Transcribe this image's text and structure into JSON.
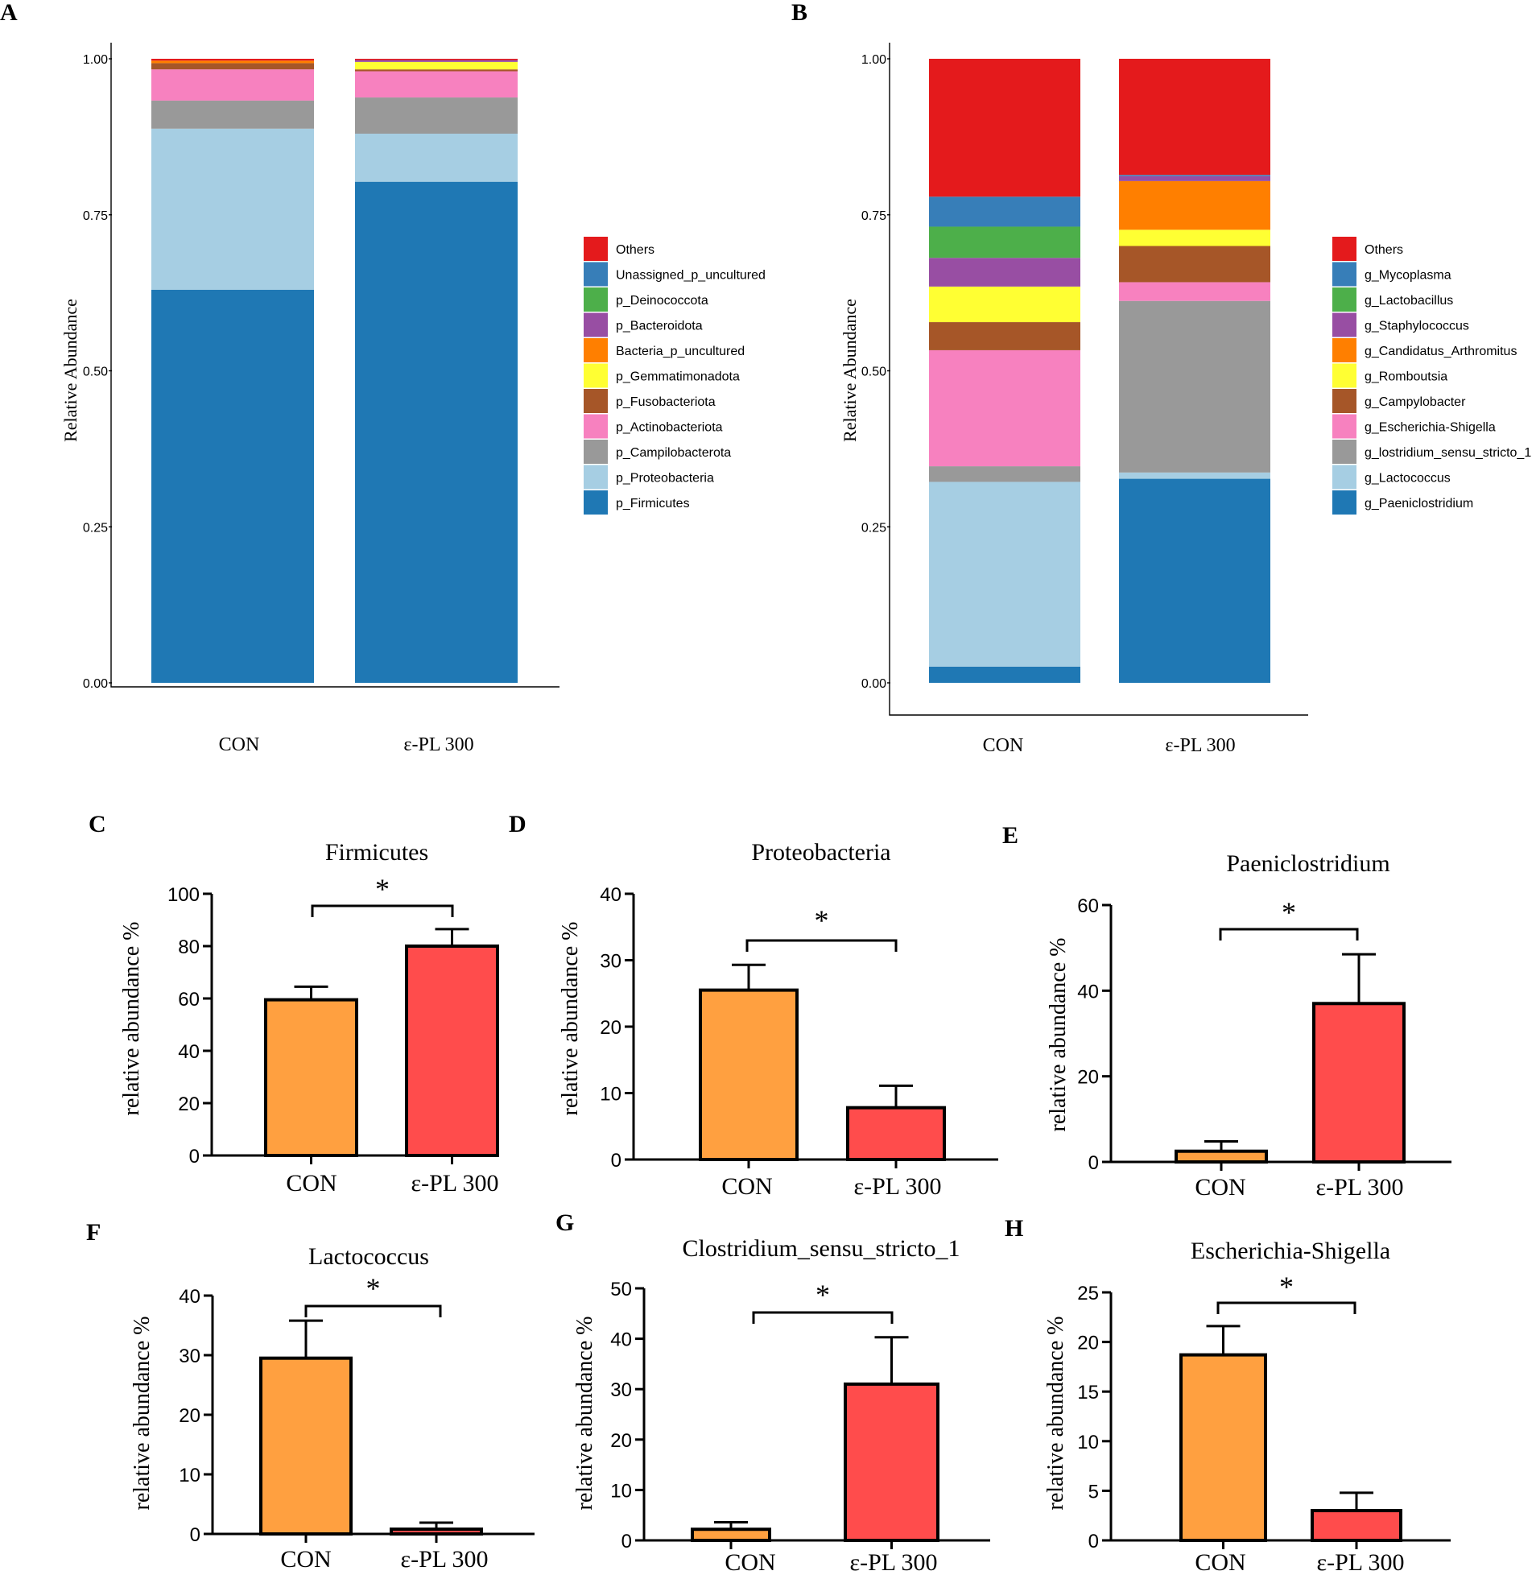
{
  "colors": {
    "red": "#e41a1c",
    "blue_dark": "#1f78b4",
    "blue_mid": "#377eb8",
    "green": "#4daf4a",
    "purple": "#984ea3",
    "orange": "#ff7f00",
    "yellow": "#ffff33",
    "brown": "#a65628",
    "pink": "#f781bf",
    "grey": "#999999",
    "light_blue": "#a6cee3",
    "bar_con": "#ffa040",
    "bar_pl": "#ff4c4c"
  },
  "chart_data": [
    {
      "id": "A",
      "type": "bar",
      "stacked": true,
      "panel": "A",
      "ylabel": "Relative Abundance",
      "ylim": [
        0,
        1
      ],
      "yticks": [
        "0.00",
        "0.25",
        "0.50",
        "0.75",
        "1.00"
      ],
      "categories": [
        "CON",
        "ε-PL 300"
      ],
      "series": [
        {
          "name": "p_Firmicutes",
          "color": "#1f78b4",
          "values": [
            0.63,
            0.803
          ]
        },
        {
          "name": "p_Proteobacteria",
          "color": "#a6cee3",
          "values": [
            0.258,
            0.077
          ]
        },
        {
          "name": "p_Campilobacterota",
          "color": "#999999",
          "values": [
            0.045,
            0.058
          ]
        },
        {
          "name": "p_Actinobacteriota",
          "color": "#f781bf",
          "values": [
            0.05,
            0.042
          ]
        },
        {
          "name": "p_Fusobacteriota",
          "color": "#a65628",
          "values": [
            0.01,
            0.003
          ]
        },
        {
          "name": "p_Gemmatimonadota",
          "color": "#ffff33",
          "values": [
            0.0,
            0.012
          ]
        },
        {
          "name": "Bacteria_p_uncultured",
          "color": "#ff7f00",
          "values": [
            0.004,
            0.0
          ]
        },
        {
          "name": "p_Bacteroidota",
          "color": "#984ea3",
          "values": [
            0.0,
            0.003
          ]
        },
        {
          "name": "p_Deinococcota",
          "color": "#4daf4a",
          "values": [
            0.0,
            0.0
          ]
        },
        {
          "name": "Unassigned_p_uncultured",
          "color": "#377eb8",
          "values": [
            0.0,
            0.0
          ]
        },
        {
          "name": "Others",
          "color": "#e41a1c",
          "values": [
            0.003,
            0.002
          ]
        }
      ],
      "legend": [
        "Others",
        "Unassigned_p_uncultured",
        "p_Deinococcota",
        "p_Bacteroidota",
        "Bacteria_p_uncultured",
        "p_Gemmatimonadota",
        "p_Fusobacteriota",
        "p_Actinobacteriota",
        "p_Campilobacterota",
        "p_Proteobacteria",
        "p_Firmicutes"
      ]
    },
    {
      "id": "B",
      "type": "bar",
      "stacked": true,
      "panel": "B",
      "ylabel": "Relative Abundance",
      "ylim": [
        0,
        1
      ],
      "yticks": [
        "0.00",
        "0.25",
        "0.50",
        "0.75",
        "1.00"
      ],
      "categories": [
        "CON",
        "ε-PL 300"
      ],
      "series": [
        {
          "name": "g_Paeniclostridium",
          "color": "#1f78b4",
          "values": [
            0.026,
            0.327
          ]
        },
        {
          "name": "g_Lactococcus",
          "color": "#a6cee3",
          "values": [
            0.296,
            0.01
          ]
        },
        {
          "name": "g_lostridium_sensu_stricto_1",
          "color": "#999999",
          "values": [
            0.025,
            0.275
          ]
        },
        {
          "name": "g_Escherichia-Shigella",
          "color": "#f781bf",
          "values": [
            0.186,
            0.03
          ]
        },
        {
          "name": "g_Campylobacter",
          "color": "#a65628",
          "values": [
            0.045,
            0.058
          ]
        },
        {
          "name": "g_Romboutsia",
          "color": "#ffff33",
          "values": [
            0.057,
            0.026
          ]
        },
        {
          "name": "g_Candidatus_Arthromitus",
          "color": "#ff7f00",
          "values": [
            0.0,
            0.078
          ]
        },
        {
          "name": "g_Staphylococcus",
          "color": "#984ea3",
          "values": [
            0.046,
            0.008
          ]
        },
        {
          "name": "g_Lactobacillus",
          "color": "#4daf4a",
          "values": [
            0.05,
            0.0
          ]
        },
        {
          "name": "g_Mycoplasma",
          "color": "#377eb8",
          "values": [
            0.048,
            0.002
          ]
        },
        {
          "name": "Others",
          "color": "#e41a1c",
          "values": [
            0.221,
            0.186
          ]
        }
      ],
      "legend": [
        "Others",
        "g_Mycoplasma",
        "g_Lactobacillus",
        "g_Staphylococcus",
        "g_Candidatus_Arthromitus",
        "g_Romboutsia",
        "g_Campylobacter",
        "g_Escherichia-Shigella",
        "g_lostridium_sensu_stricto_1",
        "g_Lactococcus",
        "g_Paeniclostridium"
      ]
    },
    {
      "id": "C",
      "type": "bar",
      "panel": "C",
      "title": "Firmicutes",
      "ylabel": "relative abundance %",
      "ylim": [
        0,
        100
      ],
      "yticks": [
        0,
        20,
        40,
        60,
        80,
        100
      ],
      "categories": [
        "CON",
        "ε-PL 300"
      ],
      "values": [
        59.5,
        80.0
      ],
      "errors": [
        5.0,
        6.5
      ],
      "significance": "*"
    },
    {
      "id": "D",
      "type": "bar",
      "panel": "D",
      "title": "Proteobacteria",
      "ylabel": "relative abundance %",
      "ylim": [
        0,
        40
      ],
      "yticks": [
        0,
        10,
        20,
        30,
        40
      ],
      "categories": [
        "CON",
        "ε-PL 300"
      ],
      "values": [
        25.5,
        7.8
      ],
      "errors": [
        3.8,
        3.3
      ],
      "significance": "*"
    },
    {
      "id": "E",
      "type": "bar",
      "panel": "E",
      "title": "Paeniclostridium",
      "ylabel": "relative abundance %",
      "ylim": [
        0,
        60
      ],
      "yticks": [
        0,
        20,
        40,
        60
      ],
      "categories": [
        "CON",
        "ε-PL 300"
      ],
      "values": [
        2.5,
        37.0
      ],
      "errors": [
        2.3,
        11.5
      ],
      "significance": "*"
    },
    {
      "id": "F",
      "type": "bar",
      "panel": "F",
      "title": "Lactococcus",
      "ylabel": "relative abundance %",
      "ylim": [
        0,
        40
      ],
      "yticks": [
        0,
        10,
        20,
        30,
        40
      ],
      "categories": [
        "CON",
        "ε-PL 300"
      ],
      "values": [
        29.5,
        0.8
      ],
      "errors": [
        6.3,
        1.1
      ],
      "significance": "*"
    },
    {
      "id": "G",
      "type": "bar",
      "panel": "G",
      "title": "Clostridium_sensu_stricto_1",
      "ylabel": "relative abundance %",
      "ylim": [
        0,
        50
      ],
      "yticks": [
        0,
        10,
        20,
        30,
        40,
        50
      ],
      "categories": [
        "CON",
        "ε-PL 300"
      ],
      "values": [
        2.2,
        31.0
      ],
      "errors": [
        1.4,
        9.3
      ],
      "significance": "*"
    },
    {
      "id": "H",
      "type": "bar",
      "panel": "H",
      "title": "Escherichia-Shigella",
      "ylabel": "relative abundance %",
      "ylim": [
        0,
        25
      ],
      "yticks": [
        0,
        5,
        10,
        15,
        20,
        25
      ],
      "categories": [
        "CON",
        "ε-PL 300"
      ],
      "values": [
        18.7,
        3.0
      ],
      "errors": [
        2.9,
        1.8
      ],
      "significance": "*"
    }
  ]
}
